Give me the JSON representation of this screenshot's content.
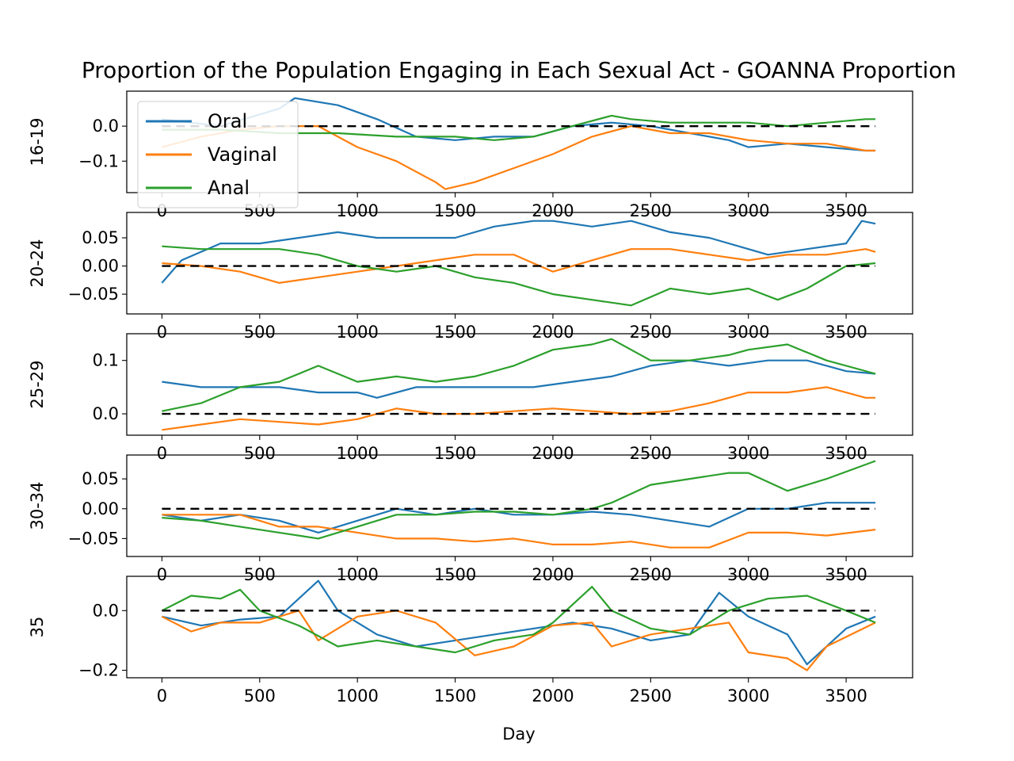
{
  "chart_data": {
    "type": "line",
    "title": "Proportion of the Population Engaging in Each Sexual Act - GOANNA Proportion",
    "xlabel": "Day",
    "xlim": [
      -180,
      3840
    ],
    "xticks": [
      0,
      500,
      1000,
      1500,
      2000,
      2500,
      3000,
      3500
    ],
    "colors": {
      "Oral": "#1f77b4",
      "Vaginal": "#ff7f0e",
      "Anal": "#2ca02c",
      "reference": "#000000"
    },
    "legend": {
      "entries": [
        "Oral",
        "Vaginal",
        "Anal"
      ],
      "placement": "upper-left"
    },
    "grid": false,
    "reference_line": {
      "y": 0,
      "style": "dashed"
    },
    "panels": [
      {
        "ylabel": "16-19",
        "ylim": [
          -0.19,
          0.1
        ],
        "yticks": [
          0.0,
          -0.1
        ],
        "ytick_labels": [
          "0.0",
          "−0.1"
        ],
        "series": [
          {
            "name": "Oral",
            "x": [
              0,
              300,
              600,
              680,
              900,
              1100,
              1300,
              1500,
              1700,
              1900,
              2100,
              2300,
              2500,
              2700,
              2900,
              3000,
              3200,
              3400,
              3600,
              3650
            ],
            "y": [
              0.02,
              0.0,
              0.05,
              0.08,
              0.06,
              0.02,
              -0.03,
              -0.04,
              -0.03,
              -0.03,
              0.0,
              0.01,
              0.0,
              -0.02,
              -0.04,
              -0.06,
              -0.05,
              -0.06,
              -0.07,
              -0.07
            ]
          },
          {
            "name": "Vaginal",
            "x": [
              0,
              200,
              400,
              600,
              800,
              1000,
              1200,
              1400,
              1450,
              1600,
              1800,
              2000,
              2200,
              2400,
              2600,
              2800,
              3000,
              3200,
              3400,
              3600,
              3650
            ],
            "y": [
              -0.06,
              -0.03,
              -0.01,
              0.0,
              0.0,
              -0.06,
              -0.1,
              -0.16,
              -0.18,
              -0.16,
              -0.12,
              -0.08,
              -0.03,
              0.0,
              -0.02,
              -0.02,
              -0.04,
              -0.05,
              -0.05,
              -0.07,
              -0.07
            ]
          },
          {
            "name": "Anal",
            "x": [
              0,
              300,
              600,
              900,
              1200,
              1500,
              1700,
              1900,
              2100,
              2300,
              2400,
              2600,
              2800,
              3000,
              3200,
              3400,
              3600,
              3650
            ],
            "y": [
              -0.01,
              -0.01,
              -0.02,
              -0.02,
              -0.03,
              -0.03,
              -0.04,
              -0.03,
              0.0,
              0.03,
              0.02,
              0.01,
              0.01,
              0.01,
              0.0,
              0.01,
              0.02,
              0.02
            ]
          }
        ]
      },
      {
        "ylabel": "20-24",
        "ylim": [
          -0.085,
          0.095
        ],
        "yticks": [
          0.05,
          0.0,
          -0.05
        ],
        "ytick_labels": [
          "0.05",
          "0.00",
          "−0.05"
        ],
        "series": [
          {
            "name": "Oral",
            "x": [
              0,
              100,
              300,
              500,
              700,
              900,
              1100,
              1300,
              1500,
              1700,
              1900,
              2000,
              2200,
              2400,
              2600,
              2800,
              3000,
              3100,
              3300,
              3500,
              3580,
              3650
            ],
            "y": [
              -0.03,
              0.01,
              0.04,
              0.04,
              0.05,
              0.06,
              0.05,
              0.05,
              0.05,
              0.07,
              0.08,
              0.08,
              0.07,
              0.08,
              0.06,
              0.05,
              0.03,
              0.02,
              0.03,
              0.04,
              0.08,
              0.075
            ]
          },
          {
            "name": "Vaginal",
            "x": [
              0,
              200,
              400,
              600,
              800,
              1000,
              1200,
              1400,
              1600,
              1800,
              2000,
              2200,
              2400,
              2600,
              2800,
              3000,
              3200,
              3400,
              3600,
              3650
            ],
            "y": [
              0.005,
              0.0,
              -0.01,
              -0.03,
              -0.02,
              -0.01,
              0.0,
              0.01,
              0.02,
              0.02,
              -0.01,
              0.01,
              0.03,
              0.03,
              0.02,
              0.01,
              0.02,
              0.02,
              0.03,
              0.025
            ]
          },
          {
            "name": "Anal",
            "x": [
              0,
              200,
              400,
              600,
              800,
              1000,
              1200,
              1400,
              1600,
              1800,
              2000,
              2200,
              2400,
              2600,
              2800,
              3000,
              3150,
              3300,
              3500,
              3650
            ],
            "y": [
              0.035,
              0.03,
              0.03,
              0.03,
              0.02,
              0.0,
              -0.01,
              0.0,
              -0.02,
              -0.03,
              -0.05,
              -0.06,
              -0.07,
              -0.04,
              -0.05,
              -0.04,
              -0.06,
              -0.04,
              0.0,
              0.005
            ]
          }
        ]
      },
      {
        "ylabel": "25-29",
        "ylim": [
          -0.04,
          0.15
        ],
        "yticks": [
          0.1,
          0.0
        ],
        "ytick_labels": [
          "0.1",
          "0.0"
        ],
        "series": [
          {
            "name": "Oral",
            "x": [
              0,
              200,
              400,
              600,
              800,
              1000,
              1100,
              1300,
              1500,
              1700,
              1900,
              2100,
              2300,
              2500,
              2700,
              2900,
              3100,
              3300,
              3500,
              3650
            ],
            "y": [
              0.06,
              0.05,
              0.05,
              0.05,
              0.04,
              0.04,
              0.03,
              0.05,
              0.05,
              0.05,
              0.05,
              0.06,
              0.07,
              0.09,
              0.1,
              0.09,
              0.1,
              0.1,
              0.08,
              0.075
            ]
          },
          {
            "name": "Vaginal",
            "x": [
              0,
              200,
              400,
              600,
              800,
              1000,
              1200,
              1400,
              1600,
              1800,
              2000,
              2200,
              2400,
              2600,
              2800,
              3000,
              3200,
              3400,
              3600,
              3650
            ],
            "y": [
              -0.03,
              -0.02,
              -0.01,
              -0.015,
              -0.02,
              -0.01,
              0.01,
              0.0,
              0.0,
              0.005,
              0.01,
              0.005,
              0.0,
              0.005,
              0.02,
              0.04,
              0.04,
              0.05,
              0.03,
              0.03
            ]
          },
          {
            "name": "Anal",
            "x": [
              0,
              200,
              400,
              600,
              800,
              1000,
              1200,
              1400,
              1600,
              1800,
              2000,
              2200,
              2300,
              2500,
              2700,
              2900,
              3000,
              3200,
              3400,
              3650
            ],
            "y": [
              0.005,
              0.02,
              0.05,
              0.06,
              0.09,
              0.06,
              0.07,
              0.06,
              0.07,
              0.09,
              0.12,
              0.13,
              0.14,
              0.1,
              0.1,
              0.11,
              0.12,
              0.13,
              0.1,
              0.075
            ]
          }
        ]
      },
      {
        "ylabel": "30-34",
        "ylim": [
          -0.08,
          0.09
        ],
        "yticks": [
          0.05,
          0.0,
          -0.05
        ],
        "ytick_labels": [
          "0.05",
          "0.00",
          "−0.05"
        ],
        "series": [
          {
            "name": "Oral",
            "x": [
              0,
              200,
              400,
              600,
              800,
              1000,
              1200,
              1400,
              1600,
              1800,
              2000,
              2200,
              2400,
              2600,
              2800,
              3000,
              3200,
              3400,
              3650
            ],
            "y": [
              -0.01,
              -0.02,
              -0.01,
              -0.02,
              -0.04,
              -0.02,
              0.0,
              -0.01,
              0.0,
              -0.01,
              -0.01,
              -0.005,
              -0.01,
              -0.02,
              -0.03,
              0.0,
              0.0,
              0.01,
              0.01
            ]
          },
          {
            "name": "Vaginal",
            "x": [
              0,
              200,
              400,
              600,
              800,
              1000,
              1200,
              1400,
              1600,
              1800,
              2000,
              2200,
              2400,
              2600,
              2800,
              3000,
              3200,
              3400,
              3650
            ],
            "y": [
              -0.01,
              -0.01,
              -0.01,
              -0.03,
              -0.03,
              -0.04,
              -0.05,
              -0.05,
              -0.055,
              -0.05,
              -0.06,
              -0.06,
              -0.055,
              -0.065,
              -0.065,
              -0.04,
              -0.04,
              -0.045,
              -0.035
            ]
          },
          {
            "name": "Anal",
            "x": [
              0,
              200,
              400,
              600,
              800,
              1000,
              1200,
              1400,
              1600,
              1800,
              2000,
              2200,
              2300,
              2500,
              2700,
              2900,
              3000,
              3200,
              3400,
              3650
            ],
            "y": [
              -0.015,
              -0.02,
              -0.03,
              -0.04,
              -0.05,
              -0.03,
              -0.01,
              -0.01,
              -0.005,
              -0.005,
              -0.01,
              0.0,
              0.01,
              0.04,
              0.05,
              0.06,
              0.06,
              0.03,
              0.05,
              0.08
            ]
          }
        ]
      },
      {
        "ylabel": "35",
        "ylim": [
          -0.225,
          0.115
        ],
        "yticks": [
          0.0,
          -0.2
        ],
        "ytick_labels": [
          "0.0",
          "−0.2"
        ],
        "series": [
          {
            "name": "Oral",
            "x": [
              0,
              200,
              400,
              600,
              800,
              900,
              1100,
              1300,
              1500,
              1700,
              1900,
              2100,
              2300,
              2500,
              2700,
              2850,
              3000,
              3200,
              3300,
              3500,
              3650
            ],
            "y": [
              -0.02,
              -0.05,
              -0.03,
              -0.02,
              0.1,
              0.0,
              -0.08,
              -0.12,
              -0.1,
              -0.08,
              -0.06,
              -0.04,
              -0.06,
              -0.1,
              -0.08,
              0.06,
              -0.02,
              -0.08,
              -0.18,
              -0.06,
              -0.02
            ]
          },
          {
            "name": "Vaginal",
            "x": [
              0,
              150,
              300,
              500,
              700,
              800,
              1000,
              1200,
              1400,
              1600,
              1800,
              2000,
              2200,
              2300,
              2500,
              2700,
              2900,
              3000,
              3200,
              3300,
              3400,
              3650
            ],
            "y": [
              -0.02,
              -0.07,
              -0.04,
              -0.04,
              0.0,
              -0.1,
              -0.02,
              0.0,
              -0.04,
              -0.15,
              -0.12,
              -0.05,
              -0.04,
              -0.12,
              -0.08,
              -0.06,
              -0.04,
              -0.14,
              -0.16,
              -0.2,
              -0.12,
              -0.04
            ]
          },
          {
            "name": "Anal",
            "x": [
              0,
              150,
              300,
              400,
              500,
              700,
              900,
              1100,
              1300,
              1500,
              1700,
              1900,
              2000,
              2200,
              2300,
              2500,
              2700,
              2900,
              3100,
              3300,
              3500,
              3650
            ],
            "y": [
              0.0,
              0.05,
              0.04,
              0.07,
              0.0,
              -0.05,
              -0.12,
              -0.1,
              -0.12,
              -0.14,
              -0.1,
              -0.08,
              -0.04,
              0.08,
              0.0,
              -0.06,
              -0.08,
              0.0,
              0.04,
              0.05,
              0.0,
              -0.04
            ]
          }
        ]
      }
    ]
  }
}
